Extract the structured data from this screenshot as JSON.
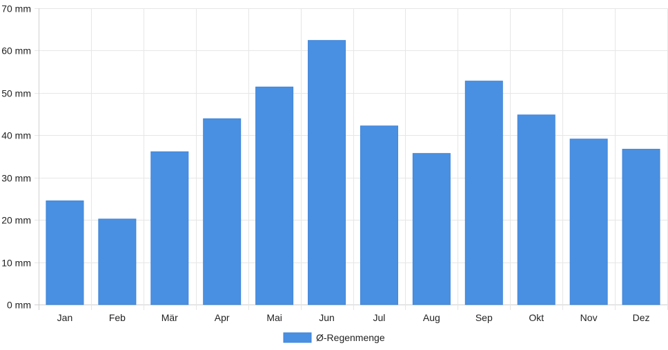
{
  "chart_data": {
    "type": "bar",
    "categories": [
      "Jan",
      "Feb",
      "Mär",
      "Apr",
      "Mai",
      "Jun",
      "Jul",
      "Aug",
      "Sep",
      "Okt",
      "Nov",
      "Dez"
    ],
    "series": [
      {
        "name": "Ø-Regenmenge",
        "values": [
          24.5,
          20.2,
          36.1,
          43.9,
          51.4,
          62.4,
          42.2,
          35.7,
          52.8,
          44.8,
          39.1,
          36.7
        ],
        "color": "#4a90e2"
      }
    ],
    "yticks": [
      "0 mm",
      "10 mm",
      "20 mm",
      "30 mm",
      "40 mm",
      "50 mm",
      "60 mm",
      "70 mm"
    ],
    "ylim": [
      0,
      70
    ],
    "grid": true,
    "legend_position": "bottom"
  }
}
